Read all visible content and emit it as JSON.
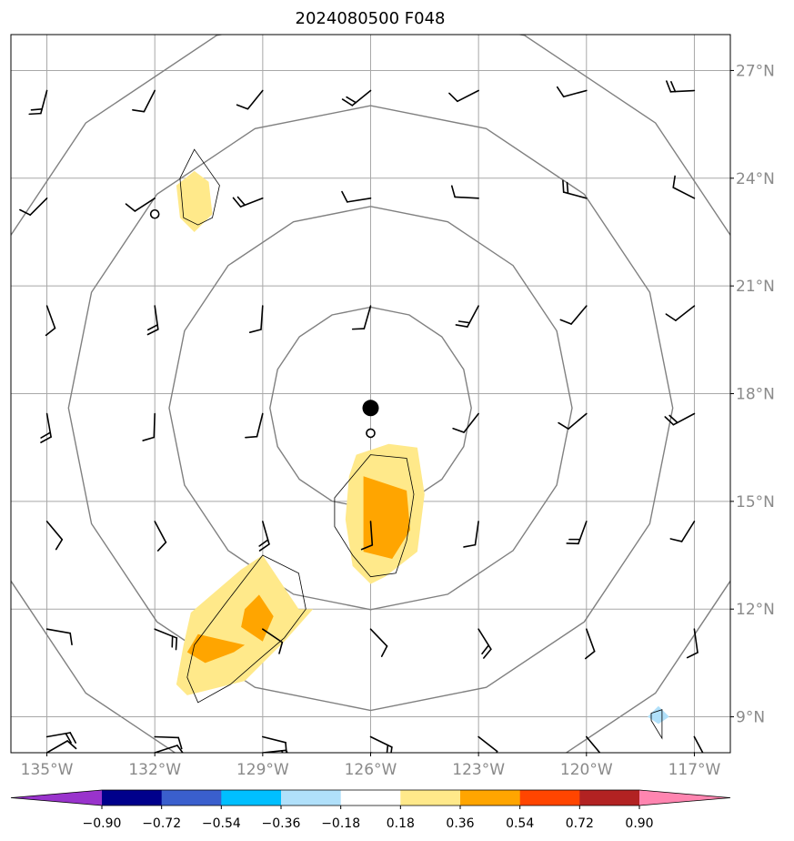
{
  "title": "2024080500 F048",
  "map": {
    "lon_range": [
      -136.0,
      -116.0
    ],
    "lat_range": [
      8.0,
      28.0
    ],
    "storm_center": {
      "lon": -126.0,
      "lat": 17.6
    },
    "secondary_markers": [
      {
        "lon": -126.0,
        "lat": 16.9
      },
      {
        "lon": -132.0,
        "lat": 23.0
      }
    ],
    "gridlines": "on",
    "x_ticks": [
      {
        "value": -135,
        "label": "135°W"
      },
      {
        "value": -132,
        "label": "132°W"
      },
      {
        "value": -129,
        "label": "129°W"
      },
      {
        "value": -126,
        "label": "126°W"
      },
      {
        "value": -123,
        "label": "123°W"
      },
      {
        "value": -120,
        "label": "120°W"
      },
      {
        "value": -117,
        "label": "117°W"
      }
    ],
    "y_ticks": [
      {
        "value": 27,
        "label": "27°N"
      },
      {
        "value": 24,
        "label": "24°N"
      },
      {
        "value": 21,
        "label": "21°N"
      },
      {
        "value": 18,
        "label": "18°N"
      },
      {
        "value": 15,
        "label": "15°N"
      },
      {
        "value": 12,
        "label": "12°N"
      },
      {
        "value": 9,
        "label": "9°N"
      }
    ],
    "range_rings_deg": [
      2.8,
      5.6,
      8.4,
      11.2
    ]
  },
  "colorbar": {
    "ticks": [
      "−0.90",
      "−0.72",
      "−0.54",
      "−0.36",
      "−0.18",
      "0.18",
      "0.36",
      "0.54",
      "0.72",
      "0.90"
    ],
    "colors": [
      "#9933cc",
      "#00008b",
      "#3a5fcd",
      "#00bfff",
      "#b0e0fa",
      "#ffffff",
      "#ffe98a",
      "#ffa500",
      "#ff4500",
      "#b22222",
      "#ff85b0"
    ]
  }
}
